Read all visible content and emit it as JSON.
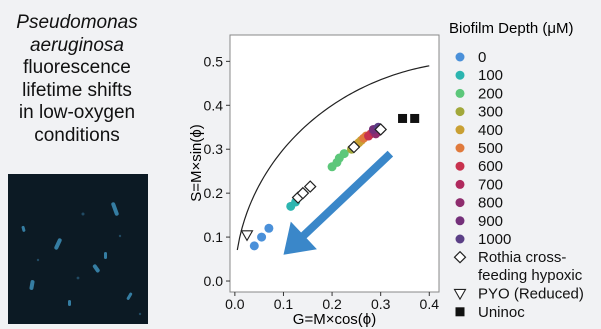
{
  "caption": {
    "species_lines": [
      "Pseudomonas",
      "aeruginosa"
    ],
    "rest_lines": [
      "fluorescence",
      "lifetime shifts",
      "in low-oxygen",
      "conditions"
    ]
  },
  "chart_data": {
    "type": "scatter",
    "xlabel": "G=M×cos(ϕ)",
    "ylabel": "S=M×sin(ϕ)",
    "xlim": [
      -0.01,
      0.42
    ],
    "ylim": [
      -0.025,
      0.56
    ],
    "x_ticks": [
      0.0,
      0.1,
      0.2,
      0.3,
      0.4
    ],
    "y_ticks": [
      0.0,
      0.1,
      0.2,
      0.3,
      0.4,
      0.5
    ],
    "x_tick_labels": [
      "0.0",
      "0.1",
      "0.2",
      "0.3",
      "0.4"
    ],
    "y_tick_labels": [
      "0.0",
      "0.1",
      "0.2",
      "0.3",
      "0.4",
      "0.5"
    ],
    "grid": false,
    "legend_title": "Biofilm Depth (μM)",
    "legend_placement": "right",
    "series": [
      {
        "name": "0",
        "marker": "circle",
        "color": "#4a90d9",
        "points": [
          [
            0.04,
            0.08
          ],
          [
            0.055,
            0.1
          ],
          [
            0.07,
            0.12
          ]
        ]
      },
      {
        "name": "100",
        "marker": "circle",
        "color": "#2cb5b0",
        "points": [
          [
            0.115,
            0.17
          ],
          [
            0.125,
            0.18
          ],
          [
            0.13,
            0.19
          ],
          [
            0.14,
            0.2
          ]
        ]
      },
      {
        "name": "200",
        "marker": "circle",
        "color": "#5cc77a",
        "points": [
          [
            0.2,
            0.26
          ],
          [
            0.21,
            0.27
          ],
          [
            0.215,
            0.28
          ],
          [
            0.225,
            0.29
          ]
        ]
      },
      {
        "name": "300",
        "marker": "circle",
        "color": "#a2a83a",
        "points": [
          [
            0.24,
            0.3
          ],
          [
            0.25,
            0.31
          ]
        ]
      },
      {
        "name": "400",
        "marker": "circle",
        "color": "#c9a033",
        "points": [
          [
            0.255,
            0.315
          ],
          [
            0.26,
            0.32
          ]
        ]
      },
      {
        "name": "500",
        "marker": "circle",
        "color": "#e07a3c",
        "points": [
          [
            0.265,
            0.325
          ],
          [
            0.27,
            0.33
          ]
        ]
      },
      {
        "name": "600",
        "marker": "circle",
        "color": "#c8324e",
        "points": [
          [
            0.275,
            0.33
          ],
          [
            0.28,
            0.335
          ]
        ]
      },
      {
        "name": "700",
        "marker": "circle",
        "color": "#b02a5e",
        "points": [
          [
            0.285,
            0.34
          ],
          [
            0.29,
            0.345
          ]
        ]
      },
      {
        "name": "800",
        "marker": "circle",
        "color": "#8e2d6e",
        "points": [
          [
            0.29,
            0.335
          ],
          [
            0.295,
            0.34
          ]
        ]
      },
      {
        "name": "900",
        "marker": "circle",
        "color": "#74307a",
        "points": [
          [
            0.285,
            0.345
          ],
          [
            0.3,
            0.345
          ]
        ]
      },
      {
        "name": "1000",
        "marker": "circle",
        "color": "#5b3f86",
        "points": [
          [
            0.295,
            0.35
          ]
        ]
      },
      {
        "name": "Rothia cross-\nfeeding hypoxic",
        "marker": "diamond",
        "color": "#222222",
        "points": [
          [
            0.13,
            0.19
          ],
          [
            0.14,
            0.2
          ],
          [
            0.155,
            0.215
          ],
          [
            0.245,
            0.305
          ],
          [
            0.3,
            0.345
          ]
        ]
      },
      {
        "name": "PYO (Reduced)",
        "marker": "triangle-down",
        "color": "#222222",
        "points": [
          [
            0.025,
            0.105
          ]
        ]
      },
      {
        "name": "Uninoc",
        "marker": "square",
        "color": "#111111",
        "points": [
          [
            0.345,
            0.37
          ],
          [
            0.37,
            0.37
          ]
        ]
      }
    ],
    "annotations": [
      {
        "type": "semicircle-arc",
        "color": "#222222"
      },
      {
        "type": "arrow",
        "color": "#3a87c9",
        "from": [
          0.32,
          0.29
        ],
        "to": [
          0.1,
          0.06
        ]
      }
    ]
  },
  "colors": {
    "background": "#f1f2f4",
    "micrograph_background": "#0c1a24",
    "micrograph_cells": "#3d8fb8",
    "arrow": "#3a87c9"
  }
}
